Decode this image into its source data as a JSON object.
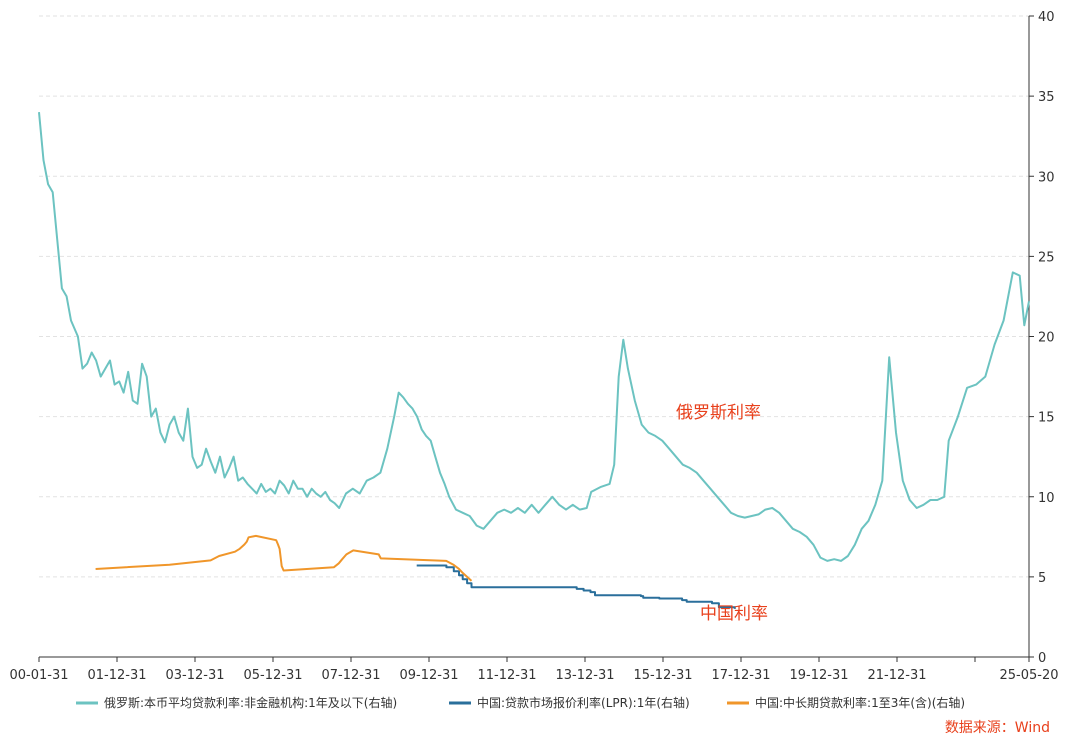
{
  "chart_data": {
    "type": "line",
    "x_tick_labels": [
      "00-01-31",
      "01-12-31",
      "03-12-31",
      "05-12-31",
      "07-12-31",
      "09-12-31",
      "11-12-31",
      "13-12-31",
      "15-12-31",
      "17-12-31",
      "19-12-31",
      "21-12-31",
      "25-05-20"
    ],
    "y_ticks": [
      0,
      5,
      10,
      15,
      20,
      25,
      30,
      35,
      40
    ],
    "ylim": [
      0,
      40
    ],
    "y_axis_side": "right",
    "grid": "horizontal dashed",
    "legend_position": "bottom",
    "annotations": [
      {
        "text": "俄罗斯利率",
        "color": "#e8401c"
      },
      {
        "text": "中国利率",
        "color": "#e8401c"
      }
    ],
    "source": "数据来源：Wind",
    "series": [
      {
        "name": "俄罗斯:本币平均贷款利率:非金融机构:1年及以下(右轴)",
        "color": "#6cc3c1",
        "points": [
          [
            "2000-01-31",
            34.0
          ],
          [
            "2000-03-31",
            31.0
          ],
          [
            "2000-05-31",
            29.5
          ],
          [
            "2000-07-31",
            29.0
          ],
          [
            "2000-09-30",
            26.0
          ],
          [
            "2000-11-30",
            23.0
          ],
          [
            "2001-01-31",
            22.5
          ],
          [
            "2001-03-31",
            21.0
          ],
          [
            "2001-06-30",
            20.0
          ],
          [
            "2001-08-31",
            18.0
          ],
          [
            "2001-10-31",
            18.3
          ],
          [
            "2001-12-31",
            19.0
          ],
          [
            "2002-02-28",
            18.5
          ],
          [
            "2002-04-30",
            17.5
          ],
          [
            "2002-06-30",
            18.0
          ],
          [
            "2002-08-31",
            18.5
          ],
          [
            "2002-10-31",
            17.0
          ],
          [
            "2002-12-31",
            17.2
          ],
          [
            "2003-02-28",
            16.5
          ],
          [
            "2003-04-30",
            17.8
          ],
          [
            "2003-06-30",
            16.0
          ],
          [
            "2003-08-31",
            15.8
          ],
          [
            "2003-10-31",
            18.3
          ],
          [
            "2003-12-31",
            17.5
          ],
          [
            "2004-02-29",
            15.0
          ],
          [
            "2004-04-30",
            15.5
          ],
          [
            "2004-06-30",
            14.0
          ],
          [
            "2004-08-31",
            13.4
          ],
          [
            "2004-10-31",
            14.5
          ],
          [
            "2004-12-31",
            15.0
          ],
          [
            "2005-02-28",
            14.0
          ],
          [
            "2005-04-30",
            13.5
          ],
          [
            "2005-06-30",
            15.5
          ],
          [
            "2005-08-31",
            12.5
          ],
          [
            "2005-10-31",
            11.8
          ],
          [
            "2005-12-31",
            12.0
          ],
          [
            "2006-02-28",
            13.0
          ],
          [
            "2006-04-30",
            12.2
          ],
          [
            "2006-06-30",
            11.5
          ],
          [
            "2006-08-31",
            12.5
          ],
          [
            "2006-10-31",
            11.2
          ],
          [
            "2006-12-31",
            11.8
          ],
          [
            "2007-02-28",
            12.5
          ],
          [
            "2007-04-30",
            11.0
          ],
          [
            "2007-06-30",
            11.2
          ],
          [
            "2007-08-31",
            10.8
          ],
          [
            "2007-10-31",
            10.5
          ],
          [
            "2007-12-31",
            10.2
          ],
          [
            "2008-02-29",
            10.8
          ],
          [
            "2008-04-30",
            10.3
          ],
          [
            "2008-06-30",
            10.5
          ],
          [
            "2008-08-31",
            10.2
          ],
          [
            "2008-10-31",
            11.0
          ],
          [
            "2008-12-31",
            10.7
          ],
          [
            "2009-02-28",
            10.2
          ],
          [
            "2009-04-30",
            11.0
          ],
          [
            "2009-06-30",
            10.5
          ],
          [
            "2009-08-31",
            10.5
          ],
          [
            "2009-10-31",
            10.0
          ],
          [
            "2009-12-31",
            10.5
          ],
          [
            "2010-02-28",
            10.2
          ],
          [
            "2010-04-30",
            10.0
          ],
          [
            "2010-06-30",
            10.3
          ],
          [
            "2010-08-31",
            9.8
          ],
          [
            "2010-10-31",
            9.6
          ],
          [
            "2010-12-31",
            9.3
          ],
          [
            "2011-03-31",
            10.2
          ],
          [
            "2011-06-30",
            10.5
          ],
          [
            "2011-09-30",
            10.2
          ],
          [
            "2011-12-31",
            11.0
          ],
          [
            "2012-03-31",
            11.2
          ],
          [
            "2012-06-30",
            11.5
          ],
          [
            "2012-09-30",
            13.0
          ],
          [
            "2012-12-31",
            15.0
          ],
          [
            "2013-02-28",
            16.5
          ],
          [
            "2013-04-30",
            16.2
          ],
          [
            "2013-06-30",
            15.8
          ],
          [
            "2013-08-31",
            15.5
          ],
          [
            "2013-10-31",
            15.0
          ],
          [
            "2013-12-31",
            14.2
          ],
          [
            "2014-02-28",
            13.8
          ],
          [
            "2014-04-30",
            13.5
          ],
          [
            "2014-06-30",
            12.5
          ],
          [
            "2014-08-31",
            11.5
          ],
          [
            "2014-10-31",
            10.8
          ],
          [
            "2014-12-31",
            10.0
          ],
          [
            "2015-03-31",
            9.2
          ],
          [
            "2015-06-30",
            9.0
          ],
          [
            "2015-09-30",
            8.8
          ],
          [
            "2015-12-31",
            8.2
          ],
          [
            "2016-03-31",
            8.0
          ],
          [
            "2016-06-30",
            8.5
          ],
          [
            "2016-09-30",
            9.0
          ],
          [
            "2016-12-31",
            9.2
          ],
          [
            "2017-03-31",
            9.0
          ],
          [
            "2017-06-30",
            9.3
          ],
          [
            "2017-09-30",
            9.0
          ],
          [
            "2017-12-31",
            9.5
          ],
          [
            "2018-03-31",
            9.0
          ],
          [
            "2018-06-30",
            9.5
          ],
          [
            "2018-09-30",
            10.0
          ],
          [
            "2018-12-31",
            9.5
          ],
          [
            "2019-03-31",
            9.2
          ],
          [
            "2019-06-30",
            9.5
          ],
          [
            "2019-09-30",
            9.2
          ],
          [
            "2019-12-31",
            9.3
          ],
          [
            "2020-02-29",
            10.3
          ],
          [
            "2020-06-30",
            10.6
          ],
          [
            "2020-10-31",
            10.8
          ],
          [
            "2020-12-31",
            12.0
          ],
          [
            "2021-02-28",
            17.5
          ],
          [
            "2021-04-30",
            19.8
          ],
          [
            "2021-06-30",
            18.0
          ],
          [
            "2021-09-30",
            16.0
          ],
          [
            "2021-12-31",
            14.5
          ],
          [
            "2022-03-31",
            14.0
          ],
          [
            "2022-06-30",
            13.8
          ],
          [
            "2022-09-30",
            13.5
          ],
          [
            "2022-12-31",
            13.0
          ],
          [
            "2023-03-31",
            12.5
          ],
          [
            "2023-06-30",
            12.0
          ],
          [
            "2023-09-30",
            11.8
          ],
          [
            "2023-12-31",
            11.5
          ],
          [
            "2024-03-31",
            11.0
          ],
          [
            "2024-06-30",
            10.5
          ],
          [
            "2024-09-30",
            10.0
          ],
          [
            "2024-12-31",
            9.5
          ],
          [
            "2025-03-31",
            9.0
          ],
          [
            "2025-06-30",
            8.8
          ],
          [
            "2025-09-30",
            8.7
          ],
          [
            "2025-12-31",
            8.8
          ],
          [
            "2026-03-31",
            8.9
          ],
          [
            "2026-06-30",
            9.2
          ],
          [
            "2026-09-30",
            9.3
          ],
          [
            "2026-12-31",
            9.0
          ],
          [
            "2027-03-31",
            8.5
          ],
          [
            "2027-06-30",
            8.0
          ],
          [
            "2027-09-30",
            7.8
          ],
          [
            "2027-12-31",
            7.5
          ],
          [
            "2028-03-31",
            7.0
          ],
          [
            "2028-06-30",
            6.2
          ],
          [
            "2028-09-30",
            6.0
          ],
          [
            "2028-12-31",
            6.1
          ],
          [
            "2029-03-31",
            6.0
          ],
          [
            "2029-06-30",
            6.3
          ],
          [
            "2029-09-30",
            7.0
          ],
          [
            "2029-12-31",
            8.0
          ],
          [
            "2030-03-31",
            8.5
          ],
          [
            "2030-06-30",
            9.5
          ],
          [
            "2030-09-30",
            11.0
          ],
          [
            "2030-12-31",
            18.7
          ],
          [
            "2031-03-31",
            14.0
          ],
          [
            "2031-06-30",
            11.0
          ],
          [
            "2031-09-30",
            9.8
          ],
          [
            "2031-12-31",
            9.3
          ],
          [
            "2032-03-31",
            9.5
          ],
          [
            "2032-06-30",
            9.8
          ],
          [
            "2032-09-30",
            9.8
          ],
          [
            "2032-12-31",
            10.0
          ],
          [
            "2033-02-28",
            13.5
          ],
          [
            "2033-06-30",
            15.0
          ],
          [
            "2033-10-31",
            16.8
          ],
          [
            "2034-02-28",
            17.0
          ],
          [
            "2034-06-30",
            17.5
          ],
          [
            "2034-10-31",
            19.5
          ],
          [
            "2035-02-28",
            21.0
          ],
          [
            "2035-06-30",
            24.0
          ],
          [
            "2035-09-30",
            23.8
          ],
          [
            "2035-11-30",
            20.7
          ],
          [
            "2036-01-31",
            22.2
          ]
        ]
      },
      {
        "name": "中国:贷款市场报价利率(LPR):1年(右轴)",
        "color": "#2a6f9b",
        "points": [
          [
            "2013-10-25",
            5.71
          ],
          [
            "2014-11-24",
            5.6
          ],
          [
            "2015-03-02",
            5.35
          ],
          [
            "2015-05-11",
            5.1
          ],
          [
            "2015-06-29",
            4.85
          ],
          [
            "2015-08-26",
            4.6
          ],
          [
            "2015-10-24",
            4.35
          ],
          [
            "2019-08-20",
            4.25
          ],
          [
            "2019-11-20",
            4.15
          ],
          [
            "2020-02-20",
            4.05
          ],
          [
            "2020-04-20",
            3.85
          ],
          [
            "2021-12-20",
            3.8
          ],
          [
            "2022-01-20",
            3.7
          ],
          [
            "2022-08-22",
            3.65
          ],
          [
            "2023-06-20",
            3.55
          ],
          [
            "2023-08-21",
            3.45
          ],
          [
            "2024-07-22",
            3.35
          ],
          [
            "2024-10-21",
            3.1
          ],
          [
            "2025-05-20",
            3.0
          ]
        ]
      },
      {
        "name": "中国:中长期贷款利率:1至3年(含)(右轴)",
        "color": "#f0962a",
        "points": [
          [
            "2002-02-21",
            5.49
          ],
          [
            "2004-10-29",
            5.76
          ],
          [
            "2006-04-28",
            6.03
          ],
          [
            "2006-08-19",
            6.3
          ],
          [
            "2007-03-18",
            6.57
          ],
          [
            "2007-05-19",
            6.75
          ],
          [
            "2007-07-21",
            7.02
          ],
          [
            "2007-08-22",
            7.2
          ],
          [
            "2007-09-15",
            7.47
          ],
          [
            "2007-12-21",
            7.56
          ],
          [
            "2008-09-16",
            7.29
          ],
          [
            "2008-10-09",
            7.02
          ],
          [
            "2008-10-30",
            6.75
          ],
          [
            "2008-11-27",
            5.67
          ],
          [
            "2008-12-23",
            5.4
          ],
          [
            "2010-10-20",
            5.6
          ],
          [
            "2010-12-26",
            5.85
          ],
          [
            "2011-02-09",
            6.1
          ],
          [
            "2011-04-06",
            6.4
          ],
          [
            "2011-07-07",
            6.65
          ],
          [
            "2012-06-08",
            6.4
          ],
          [
            "2012-07-06",
            6.15
          ],
          [
            "2014-11-22",
            6.0
          ],
          [
            "2015-03-01",
            5.75
          ],
          [
            "2015-05-11",
            5.5
          ],
          [
            "2015-06-28",
            5.25
          ],
          [
            "2015-08-26",
            5.0
          ],
          [
            "2015-10-24",
            4.75
          ]
        ]
      }
    ]
  }
}
